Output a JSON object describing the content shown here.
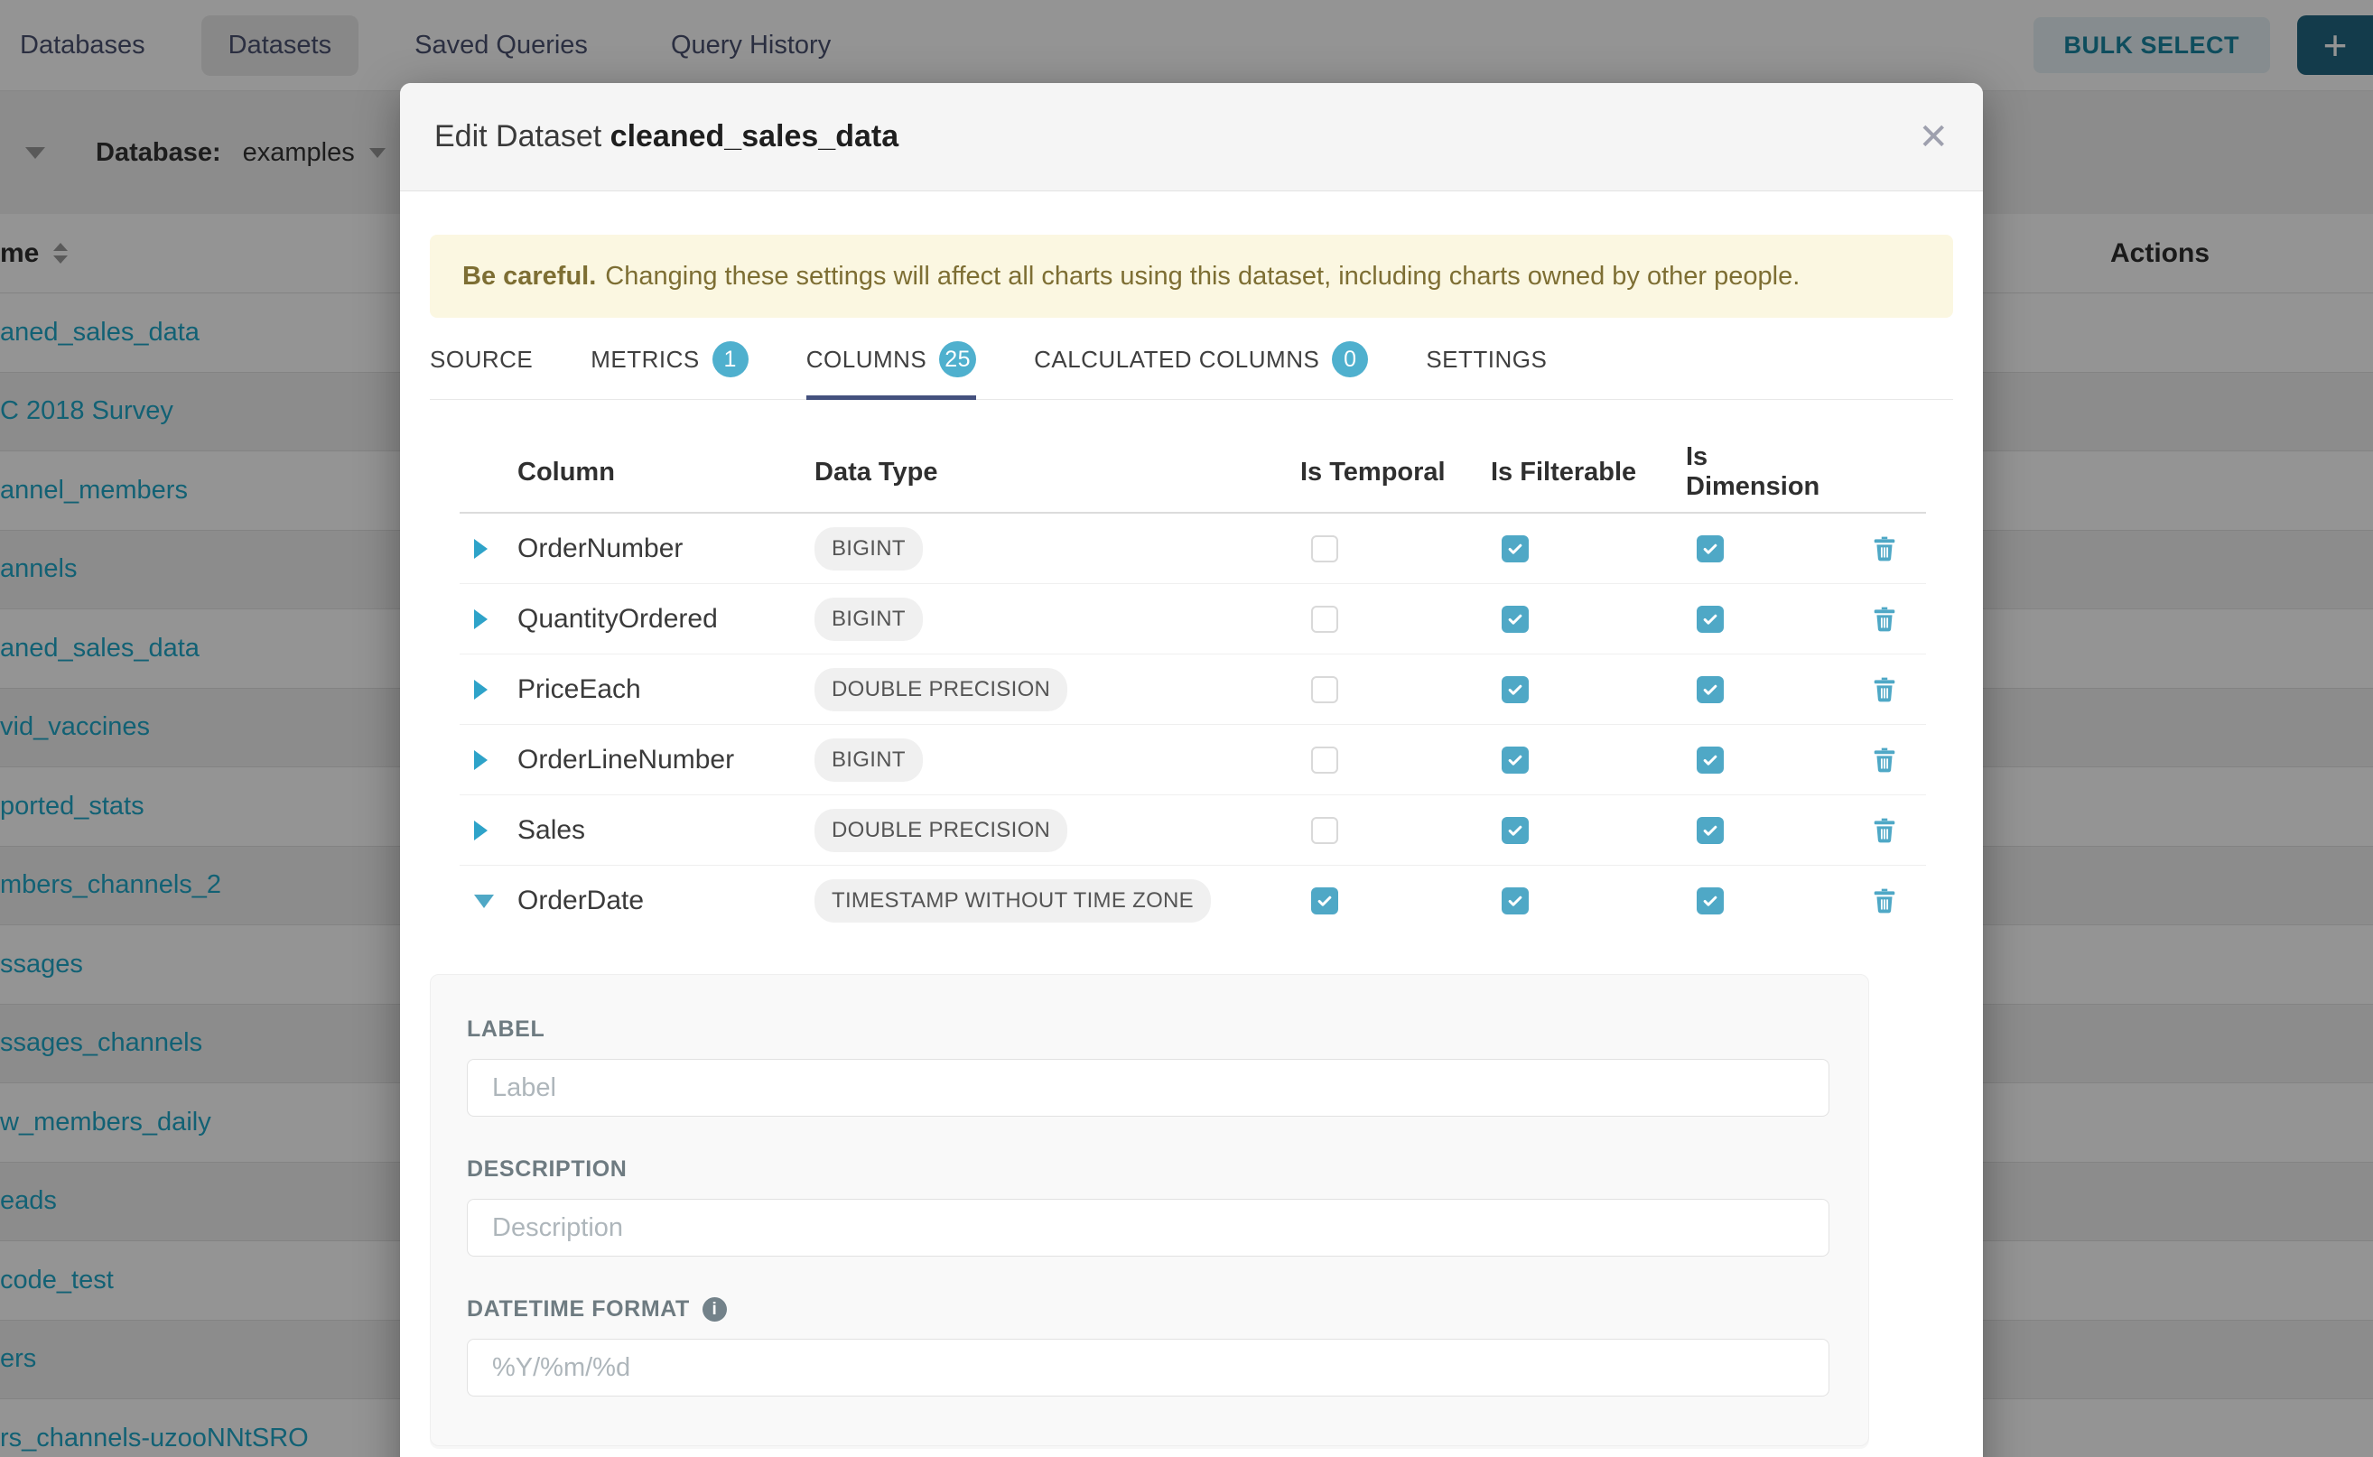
{
  "nav": {
    "tabs": [
      {
        "id": "databases",
        "label": "Databases",
        "active": false
      },
      {
        "id": "datasets",
        "label": "Datasets",
        "active": true
      },
      {
        "id": "saved-queries",
        "label": "Saved Queries",
        "active": false
      },
      {
        "id": "query-history",
        "label": "Query History",
        "active": false
      }
    ],
    "bulk_select_label": "BULK SELECT",
    "add_button_label": "+"
  },
  "filter_bar": {
    "database_label": "Database:",
    "database_value": "examples"
  },
  "background_table": {
    "name_header": "me",
    "actions_header": "Actions",
    "rows": [
      "aned_sales_data",
      "C 2018 Survey",
      "annel_members",
      "annels",
      "aned_sales_data",
      "vid_vaccines",
      "ported_stats",
      "mbers_channels_2",
      "ssages",
      "ssages_channels",
      "w_members_daily",
      "eads",
      "code_test",
      "ers",
      "rs_channels-uzooNNtSRO"
    ]
  },
  "modal": {
    "title_prefix": "Edit Dataset",
    "dataset_name": "cleaned_sales_data",
    "close_icon": "✕",
    "warning_bold": "Be careful.",
    "warning_text": "Changing these settings will affect all charts using this dataset, including charts owned by other people.",
    "tabs": [
      {
        "label": "SOURCE",
        "badge": null,
        "active": false
      },
      {
        "label": "METRICS",
        "badge": "1",
        "active": false
      },
      {
        "label": "COLUMNS",
        "badge": "25",
        "active": true
      },
      {
        "label": "CALCULATED COLUMNS",
        "badge": "0",
        "active": false
      },
      {
        "label": "SETTINGS",
        "badge": null,
        "active": false
      }
    ],
    "columns_table": {
      "headers": {
        "column": "Column",
        "data_type": "Data Type",
        "is_temporal": "Is Temporal",
        "is_filterable": "Is Filterable",
        "is_dimension": "Is Dimension"
      },
      "rows": [
        {
          "name": "OrderNumber",
          "type": "BIGINT",
          "temporal": false,
          "filterable": true,
          "dimension": true,
          "expanded": false
        },
        {
          "name": "QuantityOrdered",
          "type": "BIGINT",
          "temporal": false,
          "filterable": true,
          "dimension": true,
          "expanded": false
        },
        {
          "name": "PriceEach",
          "type": "DOUBLE PRECISION",
          "temporal": false,
          "filterable": true,
          "dimension": true,
          "expanded": false
        },
        {
          "name": "OrderLineNumber",
          "type": "BIGINT",
          "temporal": false,
          "filterable": true,
          "dimension": true,
          "expanded": false
        },
        {
          "name": "Sales",
          "type": "DOUBLE PRECISION",
          "temporal": false,
          "filterable": true,
          "dimension": true,
          "expanded": false
        },
        {
          "name": "OrderDate",
          "type": "TIMESTAMP WITHOUT TIME ZONE",
          "temporal": true,
          "filterable": true,
          "dimension": true,
          "expanded": true
        }
      ]
    },
    "detail_panel": {
      "label_label": "LABEL",
      "label_placeholder": "Label",
      "label_value": "",
      "description_label": "DESCRIPTION",
      "description_placeholder": "Description",
      "description_value": "",
      "datetime_label": "DATETIME FORMAT",
      "datetime_placeholder": "%Y/%m/%d",
      "datetime_value": "",
      "info_icon": "i"
    }
  },
  "colors": {
    "accent": "#20A7C9",
    "checkbox_checked": "#4FA8C6",
    "tab_underline": "#44517E",
    "badge_bg": "#4FB0CE",
    "warning_bg": "#FBF7E1",
    "warning_text": "#7D6E33"
  }
}
